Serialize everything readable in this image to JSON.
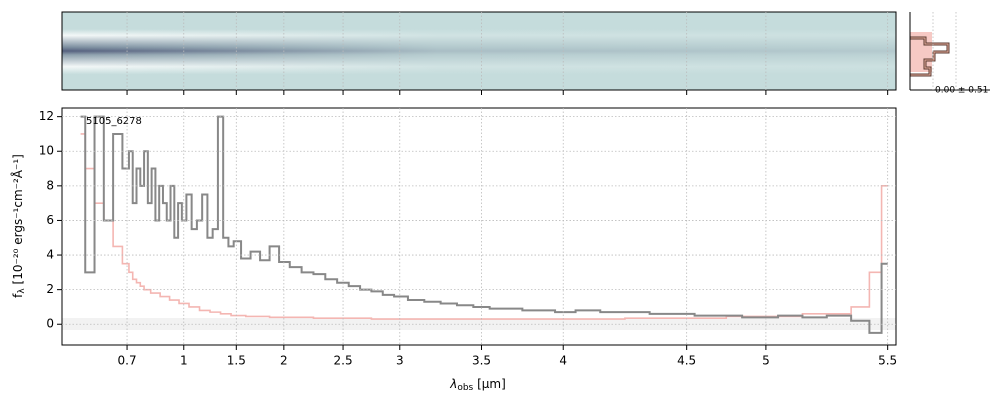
{
  "chart_data": {
    "type": "line",
    "label": "5105_6278",
    "profile_label": "0.00 ± 0.51",
    "xlabel": {
      "symbol": "λ",
      "sub": "obs",
      "unit": " [μm]"
    },
    "ylabel": {
      "symbol": "f",
      "sub": "λ",
      "unit": " [10⁻²⁰ ergs⁻¹cm⁻²Å⁻¹]"
    },
    "xscale": "nonlinear",
    "xlim": [
      0.56,
      5.53
    ],
    "xticks": [
      0.7,
      1.0,
      1.5,
      2.0,
      2.5,
      3.0,
      3.5,
      4.0,
      4.5,
      5.0,
      5.5
    ],
    "ylim": [
      -1.2,
      12.5
    ],
    "yticks": [
      0,
      2,
      4,
      6,
      8,
      10,
      12
    ],
    "grid": true,
    "series": [
      {
        "color": "#888888",
        "x": [
          0.6,
          0.62,
          0.64,
          0.66,
          0.68,
          0.7,
          0.72,
          0.74,
          0.76,
          0.78,
          0.8,
          0.82,
          0.84,
          0.86,
          0.88,
          0.9,
          0.92,
          0.94,
          0.96,
          0.98,
          1.0,
          1.05,
          1.1,
          1.15,
          1.2,
          1.25,
          1.3,
          1.35,
          1.4,
          1.45,
          1.5,
          1.6,
          1.7,
          1.8,
          1.9,
          2.0,
          2.1,
          2.2,
          2.3,
          2.4,
          2.5,
          2.6,
          2.7,
          2.8,
          2.9,
          3.0,
          3.1,
          3.2,
          3.3,
          3.4,
          3.5,
          3.6,
          3.7,
          3.8,
          3.9,
          4.0,
          4.1,
          4.2,
          4.3,
          4.4,
          4.5,
          4.6,
          4.7,
          4.8,
          4.9,
          5.0,
          5.1,
          5.2,
          5.3,
          5.4,
          5.45,
          5.5
        ],
        "values": [
          12,
          3,
          12,
          6,
          11,
          9,
          10,
          7,
          9,
          8,
          10,
          7,
          9,
          6,
          8,
          7,
          6,
          8,
          5,
          7,
          6,
          7.5,
          5.5,
          6,
          7.5,
          5,
          5.5,
          12,
          5,
          4.5,
          4.8,
          3.8,
          4.2,
          3.7,
          4.5,
          3.6,
          3.3,
          3.0,
          2.9,
          2.6,
          2.4,
          2.2,
          2.0,
          1.9,
          1.7,
          1.6,
          1.4,
          1.3,
          1.2,
          1.1,
          1.0,
          0.9,
          0.9,
          0.8,
          0.8,
          0.7,
          0.8,
          0.7,
          0.7,
          0.6,
          0.6,
          0.5,
          0.5,
          0.5,
          0.4,
          0.4,
          0.5,
          0.4,
          0.5,
          0.2,
          -0.5,
          3.5
        ]
      },
      {
        "color": "#f4b6b2",
        "x": [
          0.6,
          0.62,
          0.64,
          0.66,
          0.68,
          0.7,
          0.72,
          0.74,
          0.76,
          0.78,
          0.8,
          0.85,
          0.9,
          0.95,
          1.0,
          1.1,
          1.2,
          1.3,
          1.4,
          1.5,
          1.7,
          2.0,
          2.5,
          3.0,
          3.5,
          4.0,
          4.5,
          5.0,
          5.3,
          5.4,
          5.45,
          5.5
        ],
        "values": [
          11,
          9,
          7,
          6,
          4.5,
          3.5,
          3.0,
          2.6,
          2.4,
          2.2,
          2.0,
          1.8,
          1.6,
          1.4,
          1.2,
          1.0,
          0.8,
          0.7,
          0.6,
          0.5,
          0.45,
          0.4,
          0.35,
          0.3,
          0.3,
          0.3,
          0.35,
          0.45,
          0.6,
          1.0,
          3,
          8
        ]
      }
    ]
  }
}
